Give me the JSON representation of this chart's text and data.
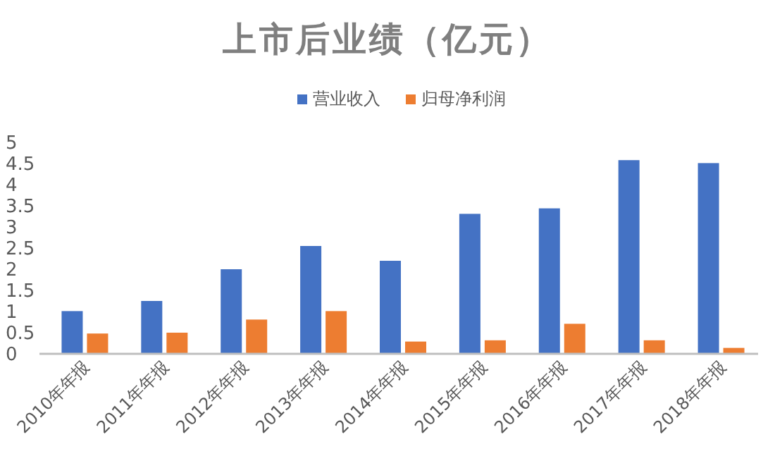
{
  "chart_data": {
    "type": "bar",
    "title": "上市后业绩（亿元）",
    "categories": [
      "2010年年报",
      "2011年年报",
      "2012年年报",
      "2013年年报",
      "2014年年报",
      "2015年年报",
      "2016年年报",
      "2017年年报",
      "2018年年报"
    ],
    "series": [
      {
        "name": "营业收入",
        "color": "#4472c4",
        "values": [
          1.01,
          1.25,
          2.0,
          2.55,
          2.2,
          3.31,
          3.44,
          4.58,
          4.51
        ]
      },
      {
        "name": "归母净利润",
        "color": "#ed7d31",
        "values": [
          0.48,
          0.5,
          0.81,
          1.01,
          0.29,
          0.32,
          0.71,
          0.32,
          0.14
        ]
      }
    ],
    "ylim": [
      0,
      5
    ],
    "yticks": [
      0,
      0.5,
      1,
      1.5,
      2,
      2.5,
      3,
      3.5,
      4,
      4.5,
      5
    ],
    "grid": false,
    "legend": "top"
  }
}
